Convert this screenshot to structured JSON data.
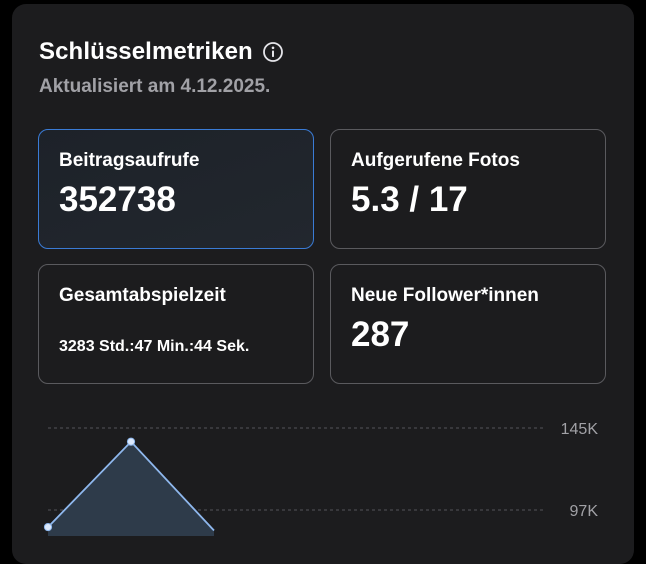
{
  "header": {
    "title": "Schlüsselmetriken",
    "info_icon": "info-circle-icon",
    "subtitle": "Aktualisiert am 4.12.2025."
  },
  "metrics": [
    {
      "label": "Beitragsaufrufe",
      "value": "352738",
      "selected": true
    },
    {
      "label": "Aufgerufene Fotos",
      "value": "5.3 / 17",
      "selected": false
    },
    {
      "label": "Gesamtabspielzeit",
      "value": "3283 Std.:47 Min.:44 Sek.",
      "selected": false
    },
    {
      "label": "Neue Follower*innen",
      "value": "287",
      "selected": false
    }
  ],
  "colors": {
    "accent": "#3a7bd5",
    "line": "#8fb8ee",
    "fill": "#2e3b4a"
  },
  "chart_data": {
    "type": "area",
    "y_ticks": [
      {
        "label": "145K",
        "value": 145000
      },
      {
        "label": "97K",
        "value": 97000
      }
    ],
    "visible_values": [
      {
        "index": 0,
        "value": 87000
      },
      {
        "index": 1,
        "value": 137000
      },
      {
        "index": 2,
        "value": 85000
      }
    ],
    "grid": "dashed-horizontal",
    "axis_position": "right"
  }
}
